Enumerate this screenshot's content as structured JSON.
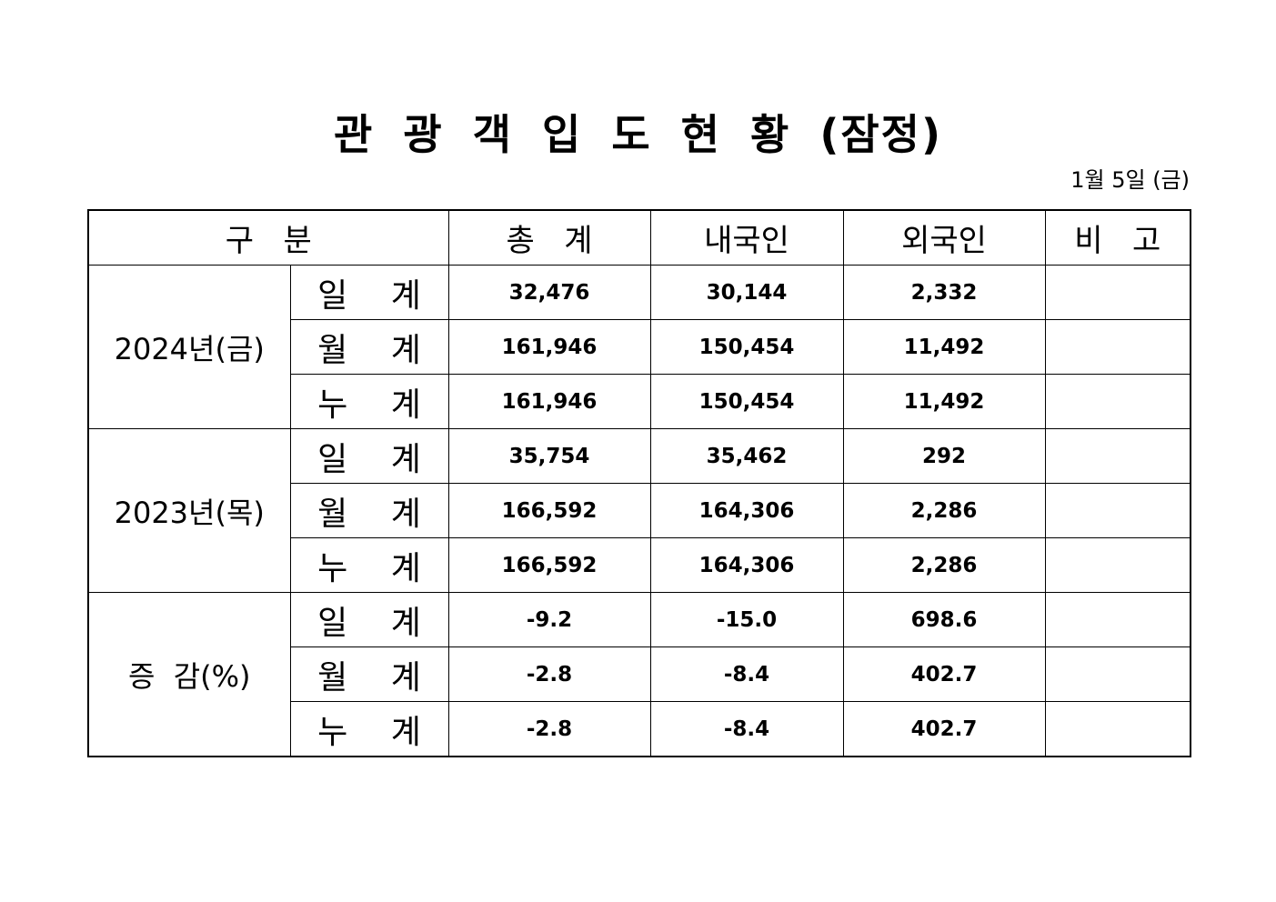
{
  "title": "관 광 객 입 도 현 황 (잠정)",
  "date": "1월 5일 (금)",
  "headers": [
    "구   분",
    "총   계",
    "내국인",
    "외국인",
    "비   고"
  ],
  "groups": [
    {
      "label": "2024년(금)",
      "rows": [
        {
          "sub": "일 계",
          "total": "32,476",
          "domestic": "30,144",
          "foreign": "2,332",
          "note": ""
        },
        {
          "sub": "월 계",
          "total": "161,946",
          "domestic": "150,454",
          "foreign": "11,492",
          "note": ""
        },
        {
          "sub": "누 계",
          "total": "161,946",
          "domestic": "150,454",
          "foreign": "11,492",
          "note": ""
        }
      ]
    },
    {
      "label": "2023년(목)",
      "rows": [
        {
          "sub": "일 계",
          "total": "35,754",
          "domestic": "35,462",
          "foreign": "292",
          "note": ""
        },
        {
          "sub": "월 계",
          "total": "166,592",
          "domestic": "164,306",
          "foreign": "2,286",
          "note": ""
        },
        {
          "sub": "누 계",
          "total": "166,592",
          "domestic": "164,306",
          "foreign": "2,286",
          "note": ""
        }
      ]
    },
    {
      "label": "증  감(%)",
      "rows": [
        {
          "sub": "일 계",
          "total": "-9.2",
          "domestic": "-15.0",
          "foreign": "698.6",
          "note": ""
        },
        {
          "sub": "월 계",
          "total": "-2.8",
          "domestic": "-8.4",
          "foreign": "402.7",
          "note": ""
        },
        {
          "sub": "누 계",
          "total": "-2.8",
          "domestic": "-8.4",
          "foreign": "402.7",
          "note": ""
        }
      ]
    }
  ]
}
